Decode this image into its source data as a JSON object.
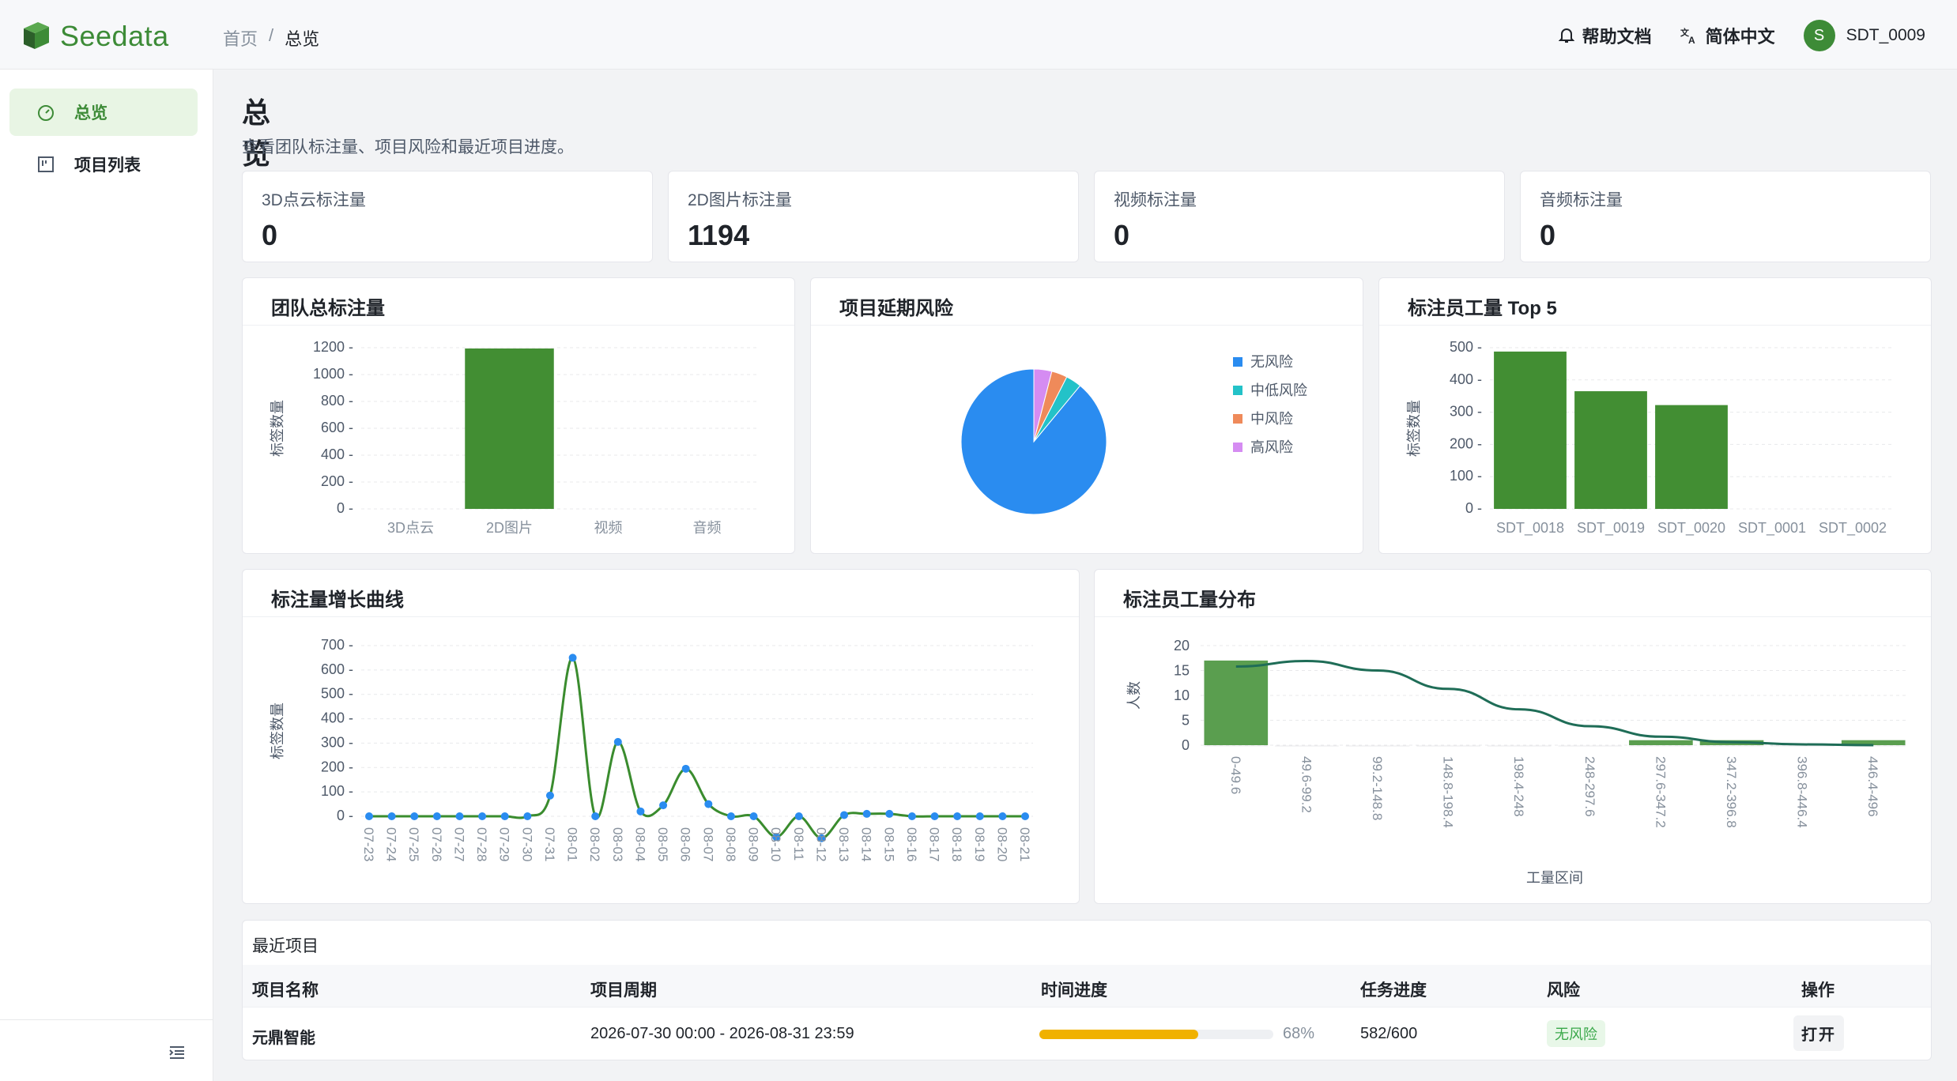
{
  "app": {
    "logo_text": "Seedata"
  },
  "breadcrumb": {
    "home": "首页",
    "sep": "/",
    "current": "总览"
  },
  "header": {
    "help": "帮助文档",
    "language": "简体中文",
    "user_initial": "S",
    "username": "SDT_0009"
  },
  "sidebar": {
    "items": [
      {
        "label": "总览",
        "icon": "dashboard-icon",
        "active": true
      },
      {
        "label": "项目列表",
        "icon": "kanban-icon",
        "active": false
      }
    ]
  },
  "page": {
    "title": "总览",
    "subtitle": "查看团队标注量、项目风险和最近项目进度。"
  },
  "stats": [
    {
      "label": "3D点云标注量",
      "value": "0"
    },
    {
      "label": "2D图片标注量",
      "value": "1194"
    },
    {
      "label": "视频标注量",
      "value": "0"
    },
    {
      "label": "音频标注量",
      "value": "0"
    }
  ],
  "cards": {
    "team_total": "团队总标注量",
    "delay_risk": "项目延期风险",
    "top5": "标注员工量 Top 5",
    "growth": "标注量增长曲线",
    "distribution": "标注员工量分布"
  },
  "colors": {
    "brand": "#3d8b37",
    "bar": "#428e33",
    "line": "#3a8c2e",
    "point": "#2a8cf0",
    "curve": "#1f6d57",
    "risk_none": "#2a8cf0",
    "risk_lowmid": "#23c2c8",
    "risk_mid": "#ef8a5a",
    "risk_high": "#d58cf2",
    "progress": "#f0b100"
  },
  "chart_data": [
    {
      "type": "bar",
      "title": "团队总标注量",
      "ylabel": "标签数量",
      "categories": [
        "3D点云",
        "2D图片",
        "视频",
        "音频"
      ],
      "values": [
        0,
        1194,
        0,
        0
      ],
      "yticks": [
        "0",
        "200",
        "400",
        "600",
        "800",
        "1000",
        "1200"
      ],
      "ylim": [
        0,
        1200
      ]
    },
    {
      "type": "pie",
      "title": "项目延期风险",
      "legend": [
        "无风险",
        "中低风险",
        "中风险",
        "高风险"
      ],
      "values": [
        89,
        3.5,
        3.5,
        4
      ],
      "legend_position": "right"
    },
    {
      "type": "bar",
      "title": "标注员工量 Top 5",
      "ylabel": "标签数量",
      "categories": [
        "SDT_0018",
        "SDT_0019",
        "SDT_0020",
        "SDT_0001",
        "SDT_0002"
      ],
      "values": [
        488,
        365,
        322,
        0,
        0
      ],
      "yticks": [
        "0",
        "100",
        "200",
        "300",
        "400",
        "500"
      ],
      "ylim": [
        0,
        500
      ]
    },
    {
      "type": "line",
      "title": "标注量增长曲线",
      "ylabel": "标签数量",
      "x": [
        "07-23",
        "07-24",
        "07-25",
        "07-26",
        "07-27",
        "07-28",
        "07-29",
        "07-30",
        "07-31",
        "08-01",
        "08-02",
        "08-03",
        "08-04",
        "08-05",
        "08-06",
        "08-07",
        "08-08",
        "08-09",
        "08-10",
        "08-11",
        "08-12",
        "08-13",
        "08-14",
        "08-15",
        "08-16",
        "08-17",
        "08-18",
        "08-19",
        "08-20",
        "08-21"
      ],
      "y": [
        0,
        0,
        0,
        0,
        0,
        0,
        0,
        0,
        85,
        650,
        0,
        305,
        20,
        45,
        195,
        50,
        0,
        0,
        -85,
        0,
        -90,
        5,
        10,
        10,
        0,
        0,
        0,
        0,
        0,
        0
      ],
      "yticks": [
        "0",
        "100",
        "200",
        "300",
        "400",
        "500",
        "600",
        "700"
      ],
      "ylim": [
        0,
        700
      ]
    },
    {
      "type": "bar",
      "title": "标注员工量分布",
      "ylabel": "人数",
      "xlabel": "工量区间",
      "categories": [
        "0-49.6",
        "49.6-99.2",
        "99.2-148.8",
        "148.8-198.4",
        "198.4-248",
        "248-297.6",
        "297.6-347.2",
        "347.2-396.8",
        "396.8-446.4",
        "446.4-496"
      ],
      "values": [
        17,
        0,
        0,
        0,
        0,
        0,
        1,
        1,
        0,
        1
      ],
      "curve": [
        15.8,
        16.9,
        15.0,
        11.3,
        7.2,
        3.8,
        1.7,
        0.6,
        0.15,
        0.0
      ],
      "yticks": [
        "0",
        "5",
        "10",
        "15",
        "20"
      ],
      "ylim": [
        0,
        20
      ]
    }
  ],
  "recent": {
    "title": "最近项目",
    "columns": [
      "项目名称",
      "项目周期",
      "时间进度",
      "任务进度",
      "风险",
      "操作"
    ],
    "row": {
      "name": "元鼎智能",
      "period": "2026-07-30 00:00 - 2026-08-31 23:59",
      "progress_label": "68%",
      "progress": 0.68,
      "task": "582/600",
      "risk": "无风险",
      "action": "打开"
    }
  }
}
